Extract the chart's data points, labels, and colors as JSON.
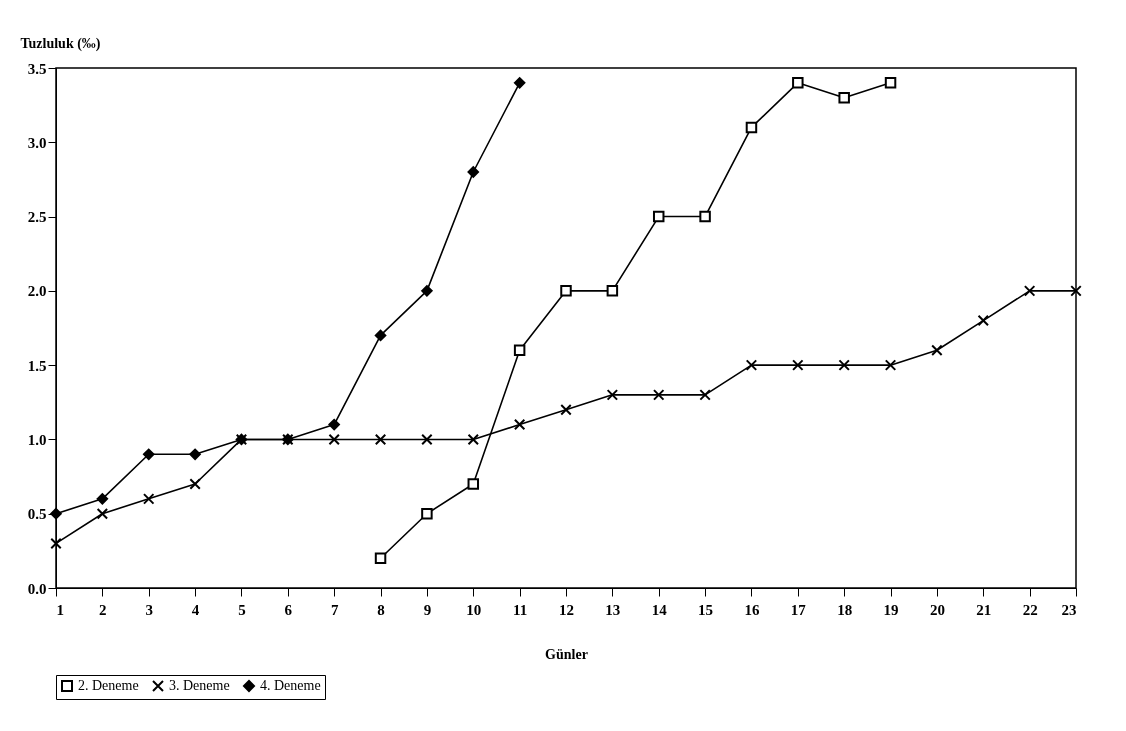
{
  "chart_data": {
    "type": "line",
    "xlabel": "Günler",
    "ylabel": "Tuzluluk (‰)",
    "xlim": [
      1,
      23
    ],
    "xticks": [
      1,
      2,
      3,
      4,
      5,
      6,
      7,
      8,
      9,
      10,
      11,
      12,
      13,
      14,
      15,
      16,
      17,
      18,
      19,
      20,
      21,
      22,
      23
    ],
    "ylim": [
      0,
      3.5
    ],
    "yticks": [
      {
        "value": 0,
        "label": "0.0"
      },
      {
        "value": 0.5,
        "label": "0.5"
      },
      {
        "value": 1,
        "label": "1.0"
      },
      {
        "value": 1.5,
        "label": "1.5"
      },
      {
        "value": 2,
        "label": "2.0"
      },
      {
        "value": 2.5,
        "label": "2.5"
      },
      {
        "value": 3,
        "label": "3.0"
      },
      {
        "value": 3.5,
        "label": "3.5"
      }
    ],
    "grid": false,
    "legend": "bottom",
    "line_style": "solid",
    "series": [
      {
        "name": "2. Deneme",
        "color": "#000000",
        "marker": "square",
        "x": [
          8,
          9,
          10,
          11,
          12,
          13,
          14,
          15,
          16,
          17,
          18,
          19
        ],
        "values": [
          0.2,
          0.5,
          0.7,
          1.6,
          2.0,
          2.0,
          2.5,
          2.5,
          3.1,
          3.4,
          3.3,
          3.4
        ]
      },
      {
        "name": "3. Deneme",
        "color": "#000000",
        "marker": "cross",
        "x": [
          1,
          2,
          3,
          4,
          5,
          6,
          7,
          8,
          9,
          10,
          11,
          12,
          13,
          14,
          15,
          16,
          17,
          18,
          19,
          20,
          21,
          22,
          23
        ],
        "values": [
          0.3,
          0.5,
          0.6,
          0.7,
          1.0,
          1.0,
          1.0,
          1.0,
          1.0,
          1.0,
          1.1,
          1.2,
          1.3,
          1.3,
          1.3,
          1.5,
          1.5,
          1.5,
          1.5,
          1.6,
          1.8,
          2.0,
          2.0
        ]
      },
      {
        "name": "4. Deneme",
        "color": "#000000",
        "marker": "diamond",
        "x": [
          1,
          2,
          3,
          4,
          5,
          6,
          7,
          8,
          9,
          10,
          11
        ],
        "values": [
          0.5,
          0.6,
          0.9,
          0.9,
          1.0,
          1.0,
          1.1,
          1.7,
          2.0,
          2.8,
          3.4
        ]
      }
    ]
  }
}
